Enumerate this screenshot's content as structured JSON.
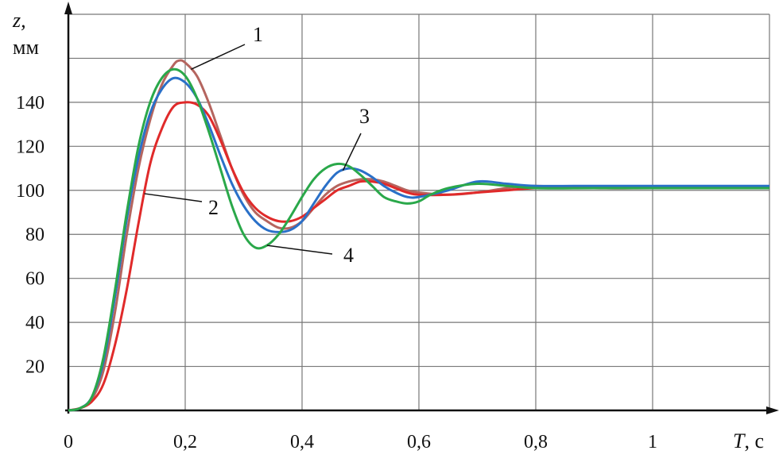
{
  "chart_data": {
    "type": "line",
    "title": "",
    "xlabel_var": "T",
    "xlabel_unit": ", с",
    "ylabel_var": "z,",
    "ylabel_unit": "мм",
    "xlim": [
      0,
      1.2
    ],
    "ylim": [
      0,
      180
    ],
    "grid": true,
    "x_ticks": [
      {
        "value": 0,
        "label": "0"
      },
      {
        "value": 0.2,
        "label": "0,2"
      },
      {
        "value": 0.4,
        "label": "0,4"
      },
      {
        "value": 0.6,
        "label": "0,6"
      },
      {
        "value": 0.8,
        "label": "0,8"
      },
      {
        "value": 1.0,
        "label": "1"
      }
    ],
    "y_ticks": [
      {
        "value": 20,
        "label": "20"
      },
      {
        "value": 40,
        "label": "40"
      },
      {
        "value": 60,
        "label": "60"
      },
      {
        "value": 80,
        "label": "80"
      },
      {
        "value": 100,
        "label": "100"
      },
      {
        "value": 120,
        "label": "120"
      },
      {
        "value": 140,
        "label": "140"
      }
    ],
    "series": [
      {
        "id": "1",
        "color": "#b5655f",
        "points": [
          [
            0,
            0
          ],
          [
            0.02,
            1
          ],
          [
            0.04,
            5
          ],
          [
            0.06,
            18
          ],
          [
            0.08,
            45
          ],
          [
            0.1,
            80
          ],
          [
            0.12,
            110
          ],
          [
            0.14,
            132
          ],
          [
            0.16,
            148
          ],
          [
            0.18,
            157
          ],
          [
            0.19,
            159
          ],
          [
            0.2,
            158
          ],
          [
            0.22,
            152
          ],
          [
            0.24,
            140
          ],
          [
            0.26,
            125
          ],
          [
            0.28,
            110
          ],
          [
            0.3,
            98
          ],
          [
            0.32,
            90
          ],
          [
            0.34,
            86
          ],
          [
            0.36,
            83
          ],
          [
            0.38,
            83
          ],
          [
            0.4,
            86
          ],
          [
            0.42,
            92
          ],
          [
            0.44,
            98
          ],
          [
            0.46,
            102
          ],
          [
            0.48,
            104
          ],
          [
            0.5,
            105
          ],
          [
            0.52,
            105
          ],
          [
            0.54,
            104
          ],
          [
            0.56,
            102
          ],
          [
            0.58,
            100
          ],
          [
            0.6,
            99
          ],
          [
            0.65,
            98
          ],
          [
            0.7,
            99
          ],
          [
            0.75,
            101
          ],
          [
            0.8,
            102
          ],
          [
            0.9,
            101
          ],
          [
            1.0,
            101
          ],
          [
            1.1,
            101
          ],
          [
            1.2,
            101
          ]
        ]
      },
      {
        "id": "2",
        "color": "#e02a2a",
        "points": [
          [
            0,
            0
          ],
          [
            0.02,
            1
          ],
          [
            0.04,
            4
          ],
          [
            0.06,
            12
          ],
          [
            0.08,
            30
          ],
          [
            0.1,
            55
          ],
          [
            0.12,
            85
          ],
          [
            0.14,
            112
          ],
          [
            0.16,
            128
          ],
          [
            0.18,
            138
          ],
          [
            0.2,
            140
          ],
          [
            0.22,
            139
          ],
          [
            0.24,
            134
          ],
          [
            0.26,
            123
          ],
          [
            0.28,
            110
          ],
          [
            0.3,
            99
          ],
          [
            0.32,
            92
          ],
          [
            0.34,
            88
          ],
          [
            0.36,
            86
          ],
          [
            0.38,
            86
          ],
          [
            0.4,
            88
          ],
          [
            0.42,
            92
          ],
          [
            0.44,
            96
          ],
          [
            0.46,
            100
          ],
          [
            0.48,
            102
          ],
          [
            0.5,
            104
          ],
          [
            0.52,
            104
          ],
          [
            0.54,
            103
          ],
          [
            0.56,
            101
          ],
          [
            0.58,
            99
          ],
          [
            0.6,
            98
          ],
          [
            0.65,
            98
          ],
          [
            0.7,
            99
          ],
          [
            0.75,
            100
          ],
          [
            0.8,
            101
          ],
          [
            0.9,
            101
          ],
          [
            1.0,
            101
          ],
          [
            1.1,
            101
          ],
          [
            1.2,
            101
          ]
        ]
      },
      {
        "id": "3",
        "color": "#2a70c8",
        "points": [
          [
            0,
            0
          ],
          [
            0.02,
            1
          ],
          [
            0.04,
            6
          ],
          [
            0.06,
            22
          ],
          [
            0.08,
            52
          ],
          [
            0.1,
            87
          ],
          [
            0.12,
            115
          ],
          [
            0.14,
            135
          ],
          [
            0.16,
            146
          ],
          [
            0.18,
            151
          ],
          [
            0.2,
            149
          ],
          [
            0.22,
            142
          ],
          [
            0.24,
            130
          ],
          [
            0.26,
            116
          ],
          [
            0.28,
            103
          ],
          [
            0.3,
            93
          ],
          [
            0.32,
            86
          ],
          [
            0.34,
            82
          ],
          [
            0.36,
            81
          ],
          [
            0.38,
            82
          ],
          [
            0.4,
            86
          ],
          [
            0.42,
            94
          ],
          [
            0.44,
            102
          ],
          [
            0.46,
            108
          ],
          [
            0.48,
            110
          ],
          [
            0.5,
            109
          ],
          [
            0.52,
            106
          ],
          [
            0.54,
            102
          ],
          [
            0.56,
            99
          ],
          [
            0.58,
            97
          ],
          [
            0.6,
            97
          ],
          [
            0.65,
            100
          ],
          [
            0.7,
            104
          ],
          [
            0.75,
            103
          ],
          [
            0.8,
            102
          ],
          [
            0.9,
            102
          ],
          [
            1.0,
            102
          ],
          [
            1.1,
            102
          ],
          [
            1.2,
            102
          ]
        ]
      },
      {
        "id": "4",
        "color": "#2aa84a",
        "points": [
          [
            0,
            0
          ],
          [
            0.02,
            1
          ],
          [
            0.04,
            6
          ],
          [
            0.06,
            24
          ],
          [
            0.08,
            55
          ],
          [
            0.1,
            90
          ],
          [
            0.12,
            120
          ],
          [
            0.14,
            140
          ],
          [
            0.16,
            151
          ],
          [
            0.18,
            155
          ],
          [
            0.2,
            152
          ],
          [
            0.22,
            142
          ],
          [
            0.24,
            127
          ],
          [
            0.26,
            110
          ],
          [
            0.28,
            93
          ],
          [
            0.3,
            80
          ],
          [
            0.32,
            74
          ],
          [
            0.34,
            75
          ],
          [
            0.36,
            80
          ],
          [
            0.38,
            88
          ],
          [
            0.4,
            97
          ],
          [
            0.42,
            105
          ],
          [
            0.44,
            110
          ],
          [
            0.46,
            112
          ],
          [
            0.48,
            111
          ],
          [
            0.5,
            107
          ],
          [
            0.52,
            102
          ],
          [
            0.54,
            97
          ],
          [
            0.56,
            95
          ],
          [
            0.58,
            94
          ],
          [
            0.6,
            95
          ],
          [
            0.62,
            98
          ],
          [
            0.65,
            101
          ],
          [
            0.7,
            103
          ],
          [
            0.75,
            102
          ],
          [
            0.8,
            101
          ],
          [
            0.9,
            101
          ],
          [
            1.0,
            101
          ],
          [
            1.1,
            101
          ],
          [
            1.2,
            101
          ]
        ]
      }
    ],
    "annotations": [
      {
        "label": "1",
        "series": "1",
        "at_x": 0.21
      },
      {
        "label": "2",
        "series": "2",
        "at_x": 0.13
      },
      {
        "label": "3",
        "series": "3",
        "at_x": 0.47
      },
      {
        "label": "4",
        "series": "4",
        "at_x": 0.34
      }
    ]
  }
}
